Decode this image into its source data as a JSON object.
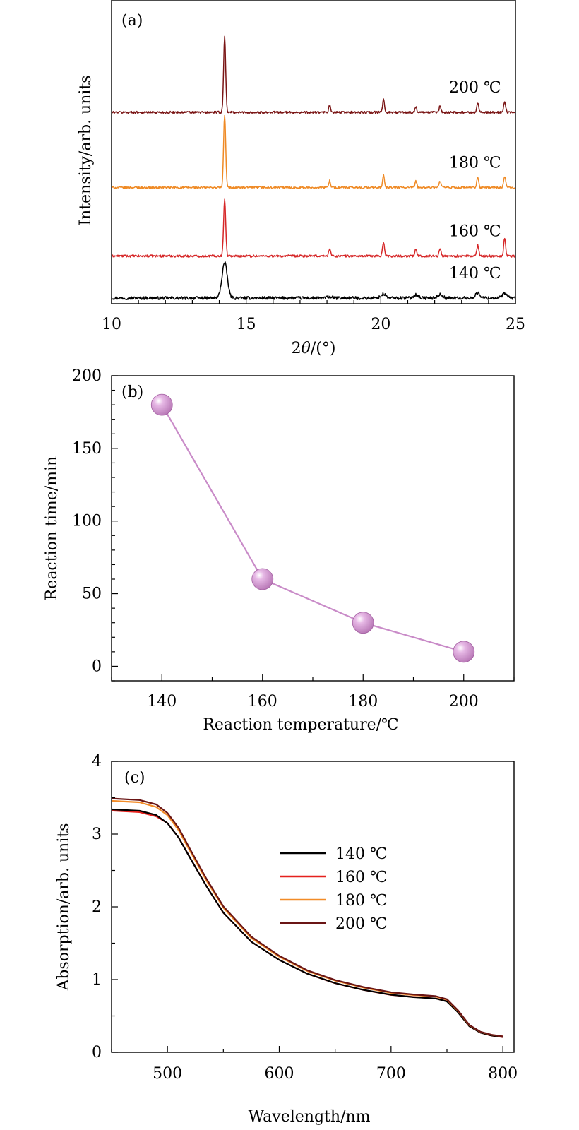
{
  "chart_data": [
    {
      "panel": "(a)",
      "type": "line",
      "xlabel": "2θ/(°)",
      "ylabel": "Intensity/arb. units",
      "xlim": [
        10,
        25
      ],
      "x_ticks": [
        "10",
        "15",
        "20",
        "25"
      ],
      "peak_positions": [
        14.2,
        18.1,
        20.1,
        21.3,
        22.2,
        23.6,
        24.6
      ],
      "series": [
        {
          "name": "140 ℃",
          "label": "140 ℃",
          "color": "#000000",
          "offset": 0.0,
          "peaks": [
            1.6,
            0.06,
            0.18,
            0.15,
            0.16,
            0.22,
            0.2
          ],
          "width": 0.09,
          "noise": 0.07
        },
        {
          "name": "160 ℃",
          "label": "160 ℃",
          "color": "#d62728",
          "offset": 1.9,
          "peaks": [
            2.6,
            0.35,
            0.65,
            0.3,
            0.33,
            0.48,
            0.82
          ],
          "width": 0.035,
          "noise": 0.05
        },
        {
          "name": "180 ℃",
          "label": "180 ℃",
          "color": "#ef8a25",
          "offset": 5.0,
          "peaks": [
            3.3,
            0.32,
            0.55,
            0.28,
            0.3,
            0.45,
            0.5
          ],
          "width": 0.035,
          "noise": 0.05
        },
        {
          "name": "200 ℃",
          "label": "200 ℃",
          "color": "#7a1515",
          "offset": 8.4,
          "peaks": [
            3.4,
            0.3,
            0.58,
            0.25,
            0.28,
            0.42,
            0.5
          ],
          "width": 0.035,
          "noise": 0.05
        }
      ]
    },
    {
      "panel": "(b)",
      "type": "scatter",
      "xlabel": "Reaction temperature/℃",
      "ylabel": "Reaction time/min",
      "xlim": [
        130,
        210
      ],
      "ylim": [
        -10,
        200
      ],
      "x_ticks": [
        140,
        160,
        180,
        200
      ],
      "y_ticks": [
        0,
        50,
        100,
        150,
        200
      ],
      "x": [
        140,
        160,
        180,
        200
      ],
      "y": [
        180,
        60,
        30,
        10
      ],
      "color": "#c98bc8"
    },
    {
      "panel": "(c)",
      "type": "line",
      "xlabel": "Wavelength/nm",
      "ylabel": "Absorption/arb. units",
      "xlim": [
        450,
        810
      ],
      "ylim": [
        0,
        4
      ],
      "x_ticks": [
        500,
        600,
        700,
        800
      ],
      "y_ticks": [
        0,
        1,
        2,
        3,
        4
      ],
      "x": [
        450,
        475,
        490,
        500,
        510,
        520,
        535,
        550,
        575,
        600,
        625,
        650,
        675,
        700,
        720,
        740,
        750,
        760,
        770,
        780,
        790,
        800
      ],
      "base": [
        3.34,
        3.32,
        3.26,
        3.15,
        2.95,
        2.68,
        2.28,
        1.92,
        1.52,
        1.27,
        1.08,
        0.95,
        0.86,
        0.79,
        0.76,
        0.74,
        0.7,
        0.55,
        0.36,
        0.27,
        0.23,
        0.21
      ],
      "legend_position": "center-right",
      "series": [
        {
          "name": "140 ℃",
          "color": "#000000",
          "scale": 1.0
        },
        {
          "name": "160 ℃",
          "color": "#e5211d",
          "scale": 1.0
        },
        {
          "name": "180 ℃",
          "color": "#f28c28",
          "scale": 1.035
        },
        {
          "name": "200 ℃",
          "color": "#6a1515",
          "scale": 1.045
        }
      ]
    }
  ]
}
